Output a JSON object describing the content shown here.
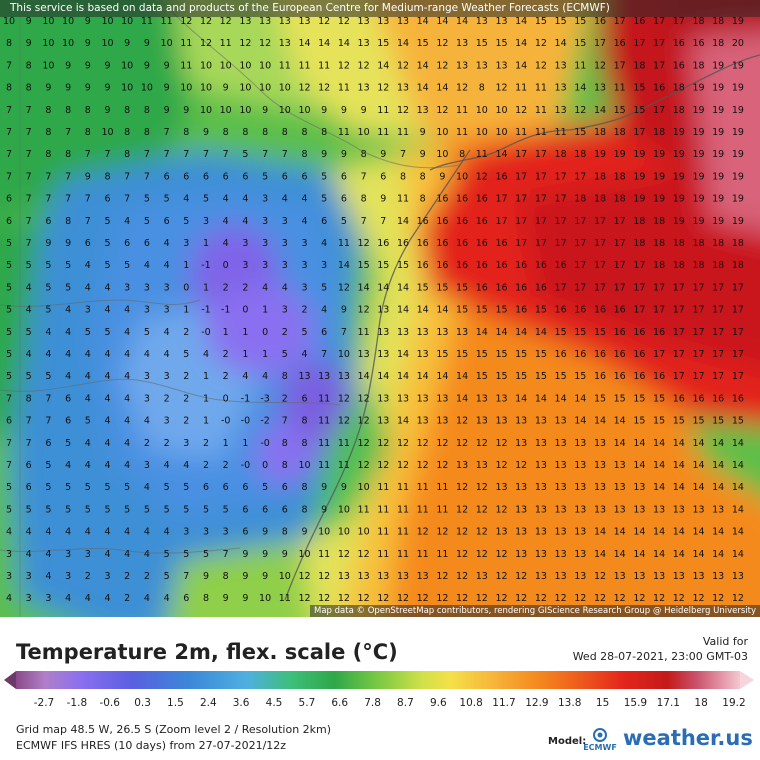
{
  "notice": "This service is based on data and products of the European Centre for Medium-range Weather Forecasts (ECMWF)",
  "map_credits": "Map data © OpenStreetMap contributors, rendering GIScience Research Group @ Heidelberg University",
  "title": "Temperature 2m, flex. scale (°C)",
  "valid_label": "Valid for",
  "valid_time": "Wed 28-07-2021, 23:00 GMT-03",
  "scale_ticks": [
    "-2.7",
    "-1.8",
    "-0.6",
    "0.3",
    "1.5",
    "2.4",
    "3.6",
    "4.5",
    "5.7",
    "6.6",
    "7.8",
    "8.7",
    "9.6",
    "10.8",
    "11.7",
    "12.9",
    "13.8",
    "15",
    "15.9",
    "17.1",
    "18",
    "19.2"
  ],
  "grid_info": "Grid map 48.5 W, 26.5 S (Zoom level 2 / Resolution 2km)",
  "run_info": "ECMWF IFS HRES (10 days) from 27-07-2021/12z",
  "model_label": "Model:",
  "model_logo_text": "ECMWF",
  "brand": "weather.us",
  "colors": {
    "cold_purple": "#8b5cf6",
    "blue": "#4a90e2",
    "green": "#3db54a",
    "yellow": "#f5e04a",
    "orange": "#f7931e",
    "red": "#e8261c",
    "dark_red": "#c41a1a",
    "pink": "#d9627a"
  },
  "grid_rows": [
    "10 9 10 10 9 10 10 11 11 12 12 12 13 13 13 13 12 12 13 13 13 14 14 14 13 13 14 15 15 15 16 17 16 17 17 18 18 19",
    "8 9 10 10 9 10 9 9 10 11 12 11 12 12 13 14 14 14 13 15 14 15 12 13 15 15 14 12 14 15 17 16 17 17 16 16 18 20",
    "7 8 10 9 9 9 10 9 9 11 10 10 10 10 11 11 11 12 12 14 12 14 12 13 13 13 14 12 13 11 12 17 18 17 16 18 19 19",
    "8 8 9 9 9 9 10 10 9 10 10 9 10 10 10 12 12 11 13 12 13 14 14 12 8 12 11 11 13 14 13 11 15 16 18 19 19 19",
    "7 7 8 8 8 9 8 8 9 9 10 10 10 9 10 10 9 9 9 11 12 13 12 11 10 10 12 11 13 12 14 15 15 17 18 19 19 19",
    "7 7 8 7 8 10 8 8 7 8 9 8 8 8 8 8 8 11 10 11 11 9 10 11 10 10 11 11 11 15 18 18 17 18 19 19 19 19",
    "7 7 8 8 7 7 8 7 7 7 7 7 5 7 7 8 9 9 8 9 7 9 10 8 11 14 17 17 18 18 19 19 19 19 19 19 19 19",
    "7 7 7 7 9 8 7 7 6 6 6 6 6 5 6 6 5 6 7 6 8 8 9 10 12 16 17 17 17 17 18 18 19 19 19 19 19 19",
    "6 7 7 7 7 6 7 5 5 4 5 4 4 3 4 4 5 6 8 9 11 8 16 16 16 17 17 17 17 18 18 18 19 19 19 19 19 19",
    "6 7 6 8 7 5 4 5 6 5 3 4 4 3 3 4 6 5 7 7 14 16 16 16 16 17 17 17 17 17 17 17 18 18 19 19 19 19",
    "5 7 9 9 6 5 6 6 4 3 1 4 3 3 3 3 4 11 12 16 16 16 16 16 16 16 17 17 17 17 17 17 18 18 18 18 18 18",
    "5 5 5 5 4 5 5 4 4 1 -1 0 3 3 3 3 3 14 15 15 15 16 16 16 16 16 16 16 16 17 17 17 17 18 18 18 18 18",
    "5 4 5 5 4 4 3 3 3 0 1 2 2 4 4 3 5 12 14 14 14 15 15 15 16 16 16 16 17 17 17 17 17 17 17 17 17 17",
    "5 4 5 4 3 4 4 3 3 1 -1 -1 0 1 3 2 4 9 12 13 14 14 14 15 15 15 16 15 16 16 16 16 17 17 17 17 17 17",
    "5 5 4 4 5 5 4 5 4 2 -0 1 1 0 2 5 6 7 11 13 13 13 13 13 14 14 14 14 15 15 15 16 16 16 17 17 17 17",
    "5 4 4 4 4 4 4 4 4 5 4 2 1 1 5 4 7 10 13 13 14 13 15 15 15 15 15 15 16 16 16 16 16 17 17 17 17 17",
    "5 5 5 4 4 4 4 3 3 2 1 2 4 4 8 13 13 13 14 14 14 14 14 14 15 15 15 15 15 15 16 16 16 16 17 17 17 17",
    "7 8 7 6 4 4 4 3 2 2 1 0 -1 -3 2 6 11 12 12 13 13 13 13 14 13 13 14 14 14 14 15 15 15 15 16 16 16 16",
    "6 7 7 6 5 4 4 4 3 2 1 -0 -0 -2 7 8 11 12 12 13 14 13 13 12 13 13 13 13 13 14 14 14 15 15 15 15 15 15",
    "7 7 6 5 4 4 4 2 2 3 2 1 1 -0 8 8 11 11 12 12 12 12 12 12 12 12 13 13 13 13 13 14 14 14 14 14 14 14",
    "7 6 5 4 4 4 4 3 4 4 2 2 -0 0 8 10 11 11 12 12 12 12 12 13 13 12 12 13 13 13 13 13 14 14 14 14 14 14",
    "5 6 5 5 5 5 5 4 5 5 6 6 6 5 6 8 9 9 10 11 11 11 11 12 12 13 13 13 13 13 13 13 13 14 14 14 14 14",
    "5 5 5 5 5 5 5 5 5 5 5 5 6 6 6 8 9 10 11 11 11 11 11 12 12 12 13 13 13 13 13 13 13 13 13 13 13 14",
    "4 4 4 4 4 4 4 4 4 3 3 3 6 9 8 9 10 10 10 11 11 12 12 12 12 13 13 13 13 13 14 14 14 14 14 14 14 14",
    "3 4 4 3 3 4 4 4 5 5 5 7 9 9 9 10 11 12 12 11 11 11 11 12 12 12 13 13 13 13 14 14 14 14 14 14 14 14",
    "3 3 4 3 2 3 2 2 5 7 9 8 9 9 10 12 12 13 13 13 13 13 12 12 13 12 12 13 13 13 12 13 13 13 13 13 13 13",
    "4 3 3 4 4 4 2 4 4 6 8 9 9 10 11 12 12 12 12 12 12 12 12 12 12 12 12 12 12 12 12 12 12 12 12 12 12 12"
  ]
}
